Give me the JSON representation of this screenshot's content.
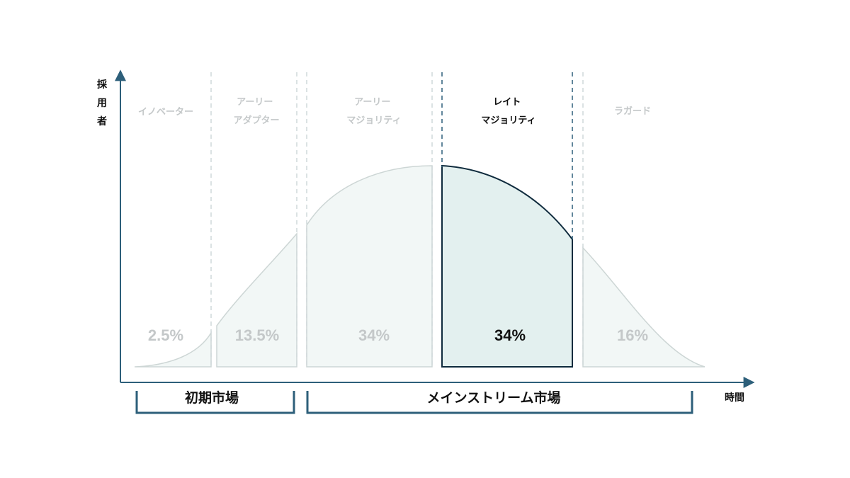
{
  "axes": {
    "y_label_chars": [
      "採",
      "用",
      "者"
    ],
    "x_label": "時間"
  },
  "segments": [
    {
      "id": "innovators",
      "lines": [
        "イノベーター"
      ],
      "percent": "2.5%",
      "highlighted": false
    },
    {
      "id": "early-adopters",
      "lines": [
        "アーリー",
        "アダプター"
      ],
      "percent": "13.5%",
      "highlighted": false
    },
    {
      "id": "early-majority",
      "lines": [
        "アーリー",
        "マジョリティ"
      ],
      "percent": "34%",
      "highlighted": false
    },
    {
      "id": "late-majority",
      "lines": [
        "レイト",
        "マジョリティ"
      ],
      "percent": "34%",
      "highlighted": true
    },
    {
      "id": "laggards",
      "lines": [
        "ラガード"
      ],
      "percent": "16%",
      "highlighted": false
    }
  ],
  "markets": [
    {
      "id": "early-market",
      "label": "初期市場"
    },
    {
      "id": "mainstream-market",
      "label": "メインストリーム市場"
    }
  ],
  "colors": {
    "axis": "#2d5f7a",
    "bracket": "#2d5f7a",
    "highlight_fill": "#e3f0ef",
    "highlight_stroke": "#0f2b3d",
    "muted_fill": "#f2f7f6",
    "muted_stroke": "#cdd6d5",
    "muted_text": "#c4c8c9",
    "strong_text": "#111111"
  }
}
